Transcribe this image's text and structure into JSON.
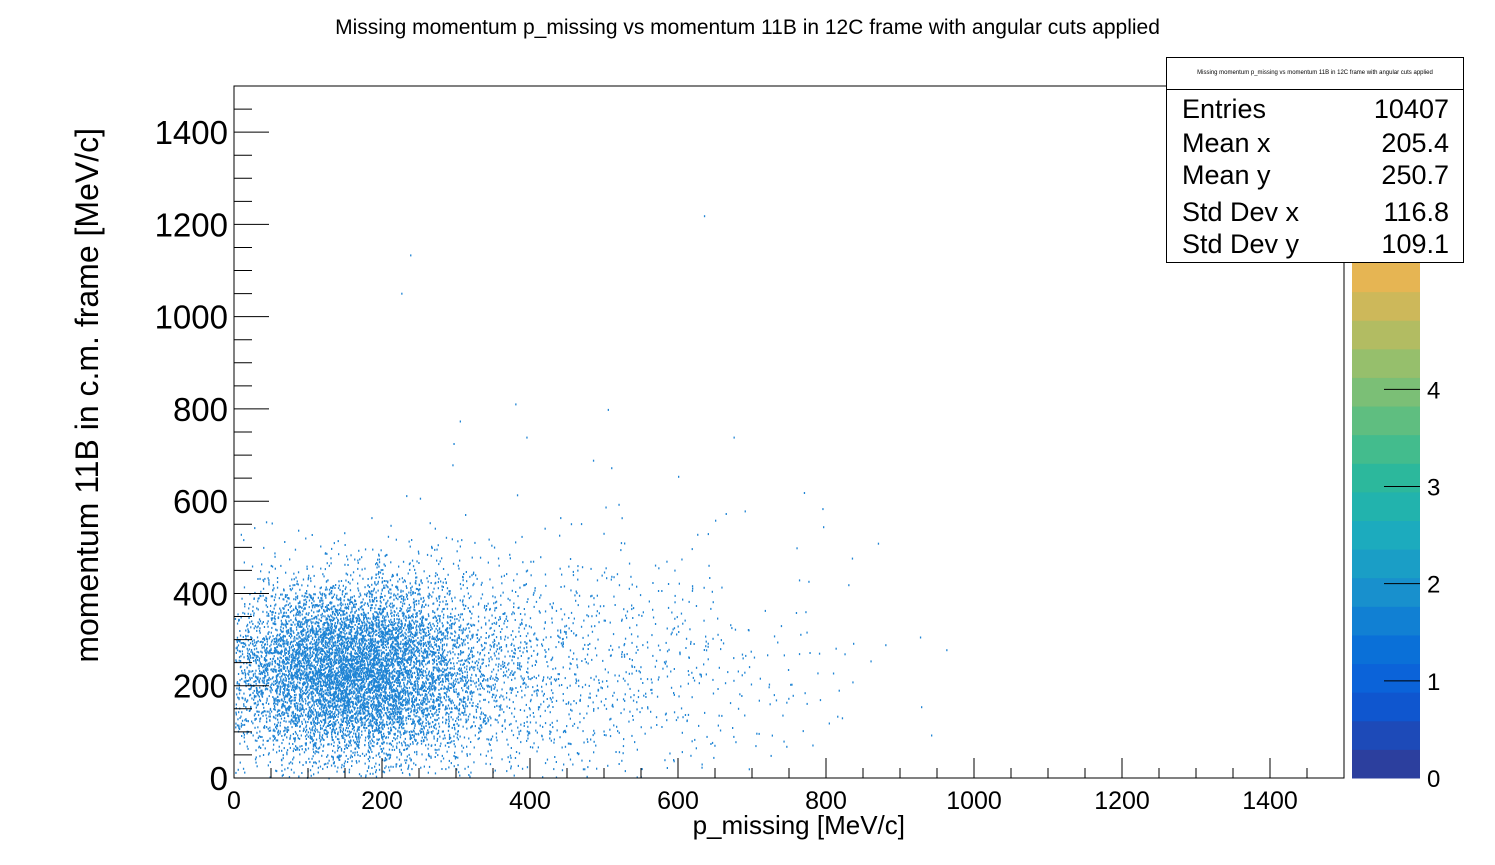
{
  "chart_data": {
    "type": "heatmap",
    "title": "Missing momentum p_missing vs momentum 11B in 12C frame with angular cuts applied",
    "xlabel": "p_missing [MeV/c]",
    "ylabel": "momentum 11B in c.m. frame [MeV/c]",
    "xlim": [
      0,
      1500
    ],
    "ylim": [
      0,
      1500
    ],
    "x_ticks": [
      "0",
      "200",
      "400",
      "600",
      "800",
      "1000",
      "1200",
      "1400"
    ],
    "y_ticks": [
      "0",
      "200",
      "400",
      "600",
      "800",
      "1000",
      "1200",
      "1400"
    ],
    "colorbar": {
      "ticks": [
        "0",
        "1",
        "2",
        "3",
        "4"
      ],
      "range": [
        0,
        5.3
      ],
      "palette": [
        "#2c3f9e",
        "#1d4ab8",
        "#0f56cf",
        "#0b63d9",
        "#0a70d8",
        "#1180d3",
        "#1890cd",
        "#1a9ec6",
        "#1cabbe",
        "#22b3ad",
        "#2cb89c",
        "#43bc8d",
        "#5fbe80",
        "#7bbf76",
        "#96bf6c",
        "#b2bc62",
        "#cdb85a",
        "#e6b553"
      ]
    },
    "distribution": {
      "color": "#1f84d4",
      "entries": 10407,
      "mean_x": 205.4,
      "mean_y": 250.7,
      "std_x": 116.8,
      "std_y": 109.1
    },
    "outliers": [
      [
        635,
        1220
      ],
      [
        238,
        1135
      ],
      [
        226,
        1052
      ],
      [
        380,
        812
      ],
      [
        505,
        800
      ],
      [
        305,
        775
      ],
      [
        675,
        740
      ],
      [
        395,
        740
      ],
      [
        485,
        690
      ],
      [
        295,
        680
      ],
      [
        600,
        655
      ],
      [
        770,
        620
      ],
      [
        690,
        580
      ],
      [
        795,
        585
      ],
      [
        870,
        510
      ],
      [
        830,
        420
      ],
      [
        880,
        290
      ],
      [
        860,
        255
      ],
      [
        815,
        135
      ],
      [
        725,
        50
      ],
      [
        520,
        420
      ],
      [
        760,
        500
      ],
      [
        650,
        560
      ]
    ]
  },
  "stats": {
    "title": "Missing momentum p_missing vs momentum 11B in 12C frame with angular cuts applied",
    "rows": [
      {
        "label": "Entries",
        "value": "10407"
      },
      {
        "label": "Mean x",
        "value": "205.4"
      },
      {
        "label": "Mean y",
        "value": "250.7"
      },
      {
        "label": "Std Dev x",
        "value": "116.8"
      },
      {
        "label": "Std Dev y",
        "value": "109.1"
      }
    ]
  }
}
